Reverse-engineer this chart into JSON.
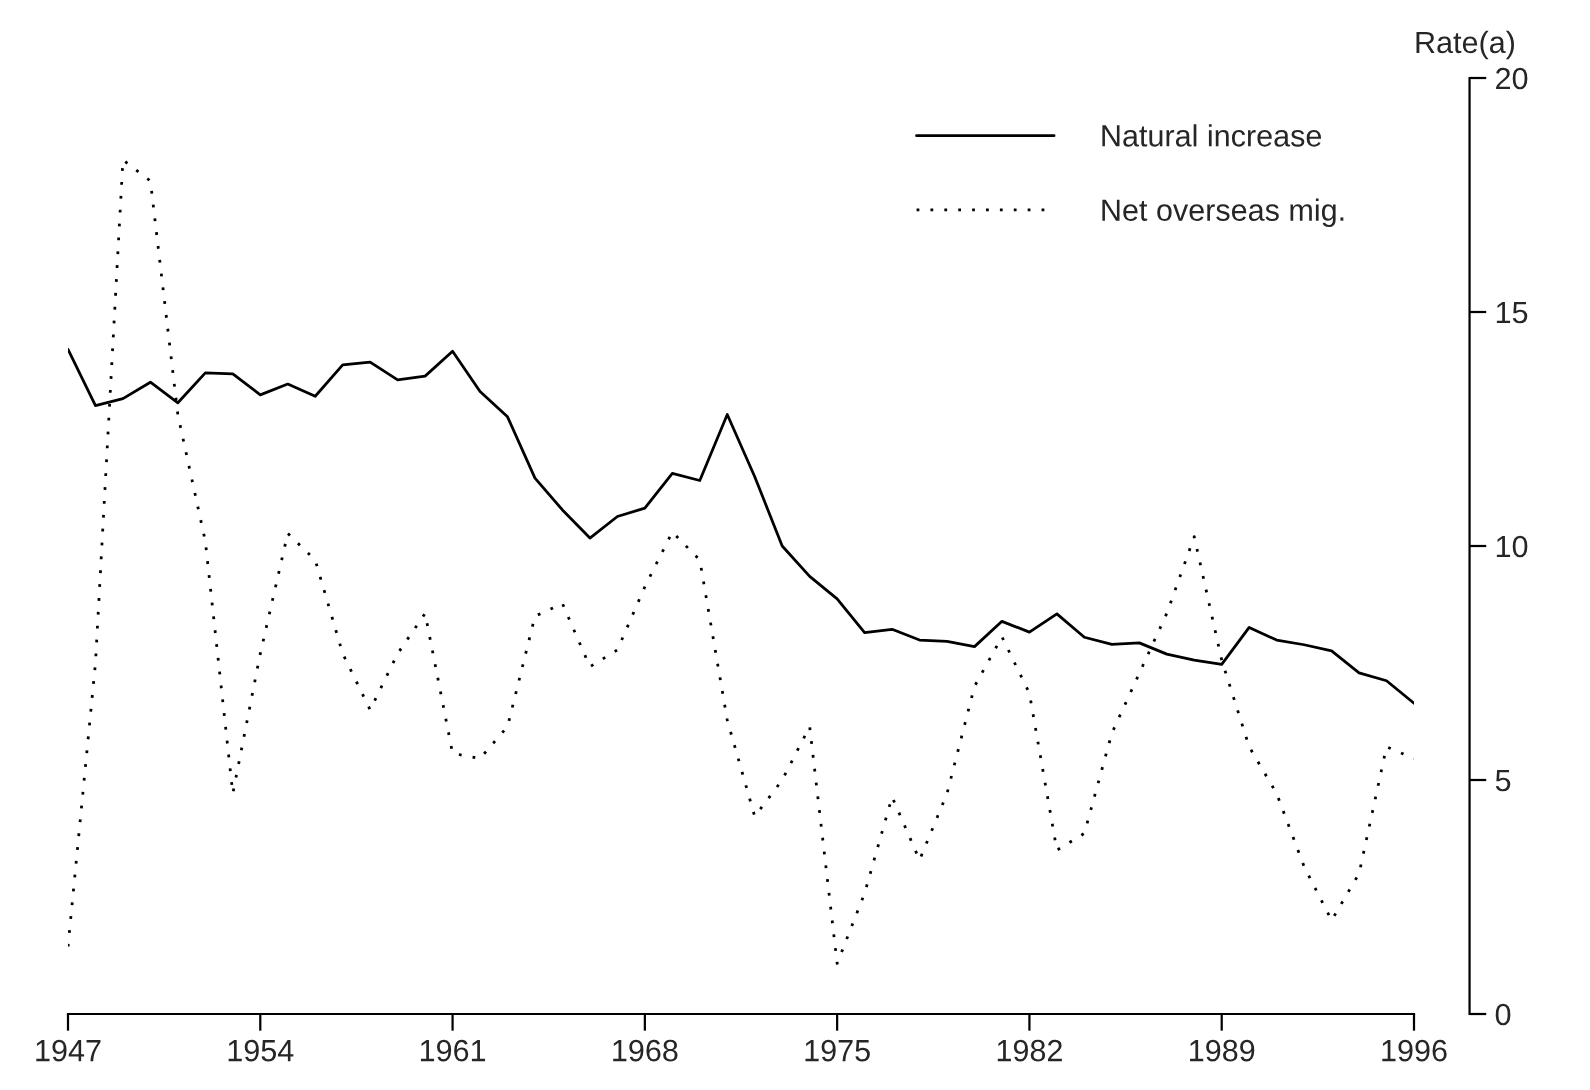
{
  "chart_data": {
    "type": "line",
    "ylabel": "Rate(a)",
    "x": [
      1947,
      1948,
      1949,
      1950,
      1951,
      1952,
      1953,
      1954,
      1955,
      1956,
      1957,
      1958,
      1959,
      1960,
      1961,
      1962,
      1963,
      1964,
      1965,
      1966,
      1967,
      1968,
      1969,
      1970,
      1971,
      1972,
      1973,
      1974,
      1975,
      1976,
      1977,
      1978,
      1979,
      1980,
      1981,
      1982,
      1983,
      1984,
      1985,
      1986,
      1987,
      1988,
      1989,
      1990,
      1991,
      1992,
      1993,
      1994,
      1995,
      1996
    ],
    "series": [
      {
        "name": "Natural increase",
        "color": "#000000",
        "line_style": "solid",
        "values": [
          14.2,
          13.0,
          13.15,
          13.5,
          13.06,
          13.7,
          13.68,
          13.23,
          13.46,
          13.2,
          13.87,
          13.93,
          13.55,
          13.63,
          14.16,
          13.3,
          12.76,
          11.45,
          10.77,
          10.17,
          10.63,
          10.81,
          11.55,
          11.4,
          12.81,
          11.48,
          10.0,
          9.35,
          8.87,
          8.15,
          8.22,
          7.99,
          7.96,
          7.85,
          8.39,
          8.16,
          8.55,
          8.05,
          7.9,
          7.93,
          7.69,
          7.56,
          7.47,
          8.26,
          7.99,
          7.89,
          7.76,
          7.29,
          7.12,
          6.64
        ]
      },
      {
        "name": "Net overseas mig.",
        "color": "#000000",
        "line_style": "dotted",
        "values": [
          1.44,
          7.5,
          18.25,
          17.8,
          12.8,
          10.1,
          4.71,
          7.7,
          10.27,
          9.7,
          7.7,
          6.5,
          7.7,
          8.56,
          5.57,
          5.46,
          6.14,
          8.5,
          8.77,
          7.42,
          7.78,
          9.13,
          10.3,
          9.7,
          6.28,
          4.22,
          5.0,
          6.14,
          1.08,
          2.58,
          4.64,
          3.29,
          4.71,
          7.0,
          8.06,
          6.85,
          3.5,
          3.86,
          6.0,
          7.28,
          8.56,
          10.2,
          7.56,
          5.71,
          4.71,
          3.15,
          2.0,
          3.0,
          5.71,
          5.46
        ]
      }
    ],
    "xlim": [
      1947,
      1996
    ],
    "xticks": [
      1947,
      1954,
      1961,
      1968,
      1975,
      1982,
      1989,
      1996
    ],
    "ylim": [
      0,
      20
    ],
    "yticks": [
      0,
      5,
      10,
      15,
      20
    ],
    "grid": false,
    "legend": "top right"
  }
}
